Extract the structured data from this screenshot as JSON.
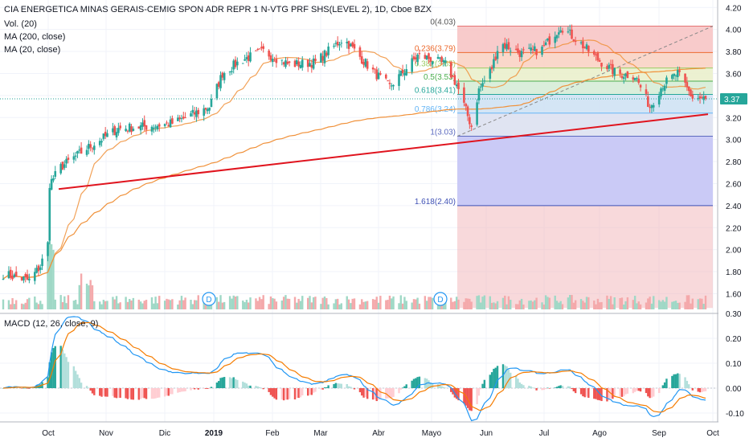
{
  "header": {
    "title": "CIA ENERGETICA MINAS GERAIS-CEMIG SPON ADR REPR 1 N-VTG PRF SHS(LEVEL 2), 1D, Cboe BZX",
    "indicators": [
      "Vol. (20)",
      "MA (200, close)",
      "MA (20, close)"
    ]
  },
  "macd_legend": "MACD (12, 26, close, 9)",
  "last_price": "3.37",
  "dividend_marker": "D",
  "colors": {
    "up": "#26a69a",
    "down": "#ef5350",
    "trend": "#e0141e",
    "ma": "#f0913a",
    "macd": "#2196f3",
    "signal": "#f57c00",
    "fib_frame": "#5b5bd6"
  },
  "chart_data": [
    {
      "type": "candlestick",
      "x_ticks": [
        "Oct",
        "Nov",
        "Dic",
        "2019",
        "Feb",
        "Mar",
        "Abr",
        "Mayo",
        "Jun",
        "Jul",
        "Ago",
        "Sep",
        "Oct"
      ],
      "y_ticks": [
        "1.60",
        "1.80",
        "2.00",
        "2.20",
        "2.40",
        "2.60",
        "2.80",
        "3.00",
        "3.20",
        "3.40",
        "3.60",
        "3.80",
        "4.00",
        "4.20"
      ],
      "ylim": [
        1.45,
        4.22
      ],
      "last_value": 3.37,
      "trendline": {
        "start": {
          "date": "Oct",
          "value": 2.55
        },
        "end": {
          "date": "Oct",
          "value": 3.23
        }
      },
      "fibonacci": [
        {
          "label": "0(4.03)",
          "ratio": 0,
          "value": 4.03
        },
        {
          "label": "0.236(3.79)",
          "ratio": 0.236,
          "value": 3.79
        },
        {
          "label": "0.382(3.65)",
          "ratio": 0.382,
          "value": 3.65
        },
        {
          "label": "0.5(3.53)",
          "ratio": 0.5,
          "value": 3.53
        },
        {
          "label": "0.618(3.41)",
          "ratio": 0.618,
          "value": 3.41
        },
        {
          "label": "0.786(3.24)",
          "ratio": 0.786,
          "value": 3.24
        },
        {
          "label": "1(3.03)",
          "ratio": 1,
          "value": 3.03
        },
        {
          "label": "1.618(2.40)",
          "ratio": 1.618,
          "value": 2.4
        }
      ],
      "series": [
        {
          "name": "MA (200, close)"
        },
        {
          "name": "MA (20, close)"
        },
        {
          "name": "Vol. (20)"
        }
      ]
    },
    {
      "type": "line",
      "y_ticks": [
        "0.30",
        "0.20",
        "0.10",
        "0.00",
        "-0.10"
      ],
      "ylim": [
        -0.16,
        0.3
      ],
      "series": [
        {
          "name": "MACD"
        },
        {
          "name": "Signal"
        },
        {
          "name": "Histogram"
        }
      ]
    }
  ]
}
